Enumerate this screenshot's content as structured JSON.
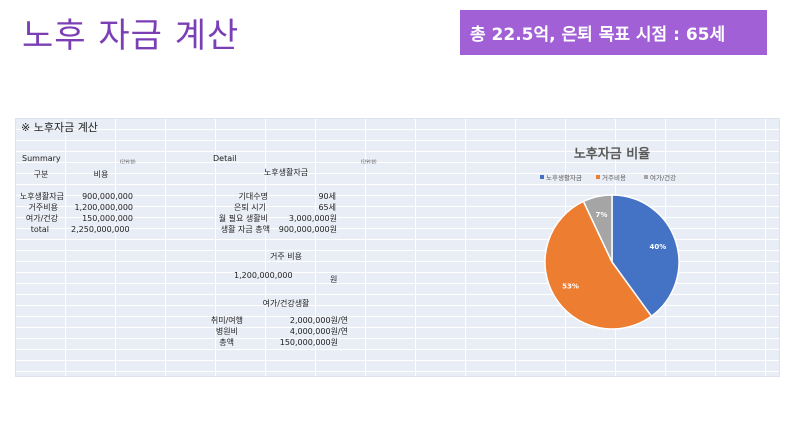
{
  "slide": {
    "title": "노후 자금 계산",
    "banner": "총 22.5억, 은퇴 목표 시점  : 65세"
  },
  "sheet": {
    "title": "※ 노후자금 계산",
    "summary": {
      "header": "Summary",
      "unit": "(단위:원)",
      "col1": "구분",
      "col2": "비용",
      "rows": [
        {
          "label": "노후생활자금",
          "value": "900,000,000"
        },
        {
          "label": "거주비용",
          "value": "1,200,000,000"
        },
        {
          "label": "여가/건강",
          "value": "150,000,000"
        },
        {
          "label": "total",
          "value": "2,250,000,000"
        }
      ]
    },
    "detail": {
      "header": "Detail",
      "unit": "(단위:원)",
      "living_title": "노후생활자금",
      "living": [
        {
          "label": "기대수명",
          "value": "90세"
        },
        {
          "label": "은퇴 시기",
          "value": "65세"
        },
        {
          "label": "월 필요 생활비",
          "value": "3,000,000원"
        },
        {
          "label": "생활 자금 총액",
          "value": "900,000,000원"
        }
      ],
      "housing_title": "거주 비용",
      "housing_value": "1,200,000,000",
      "housing_unit": "원",
      "leisure_title": "여가/건강생활",
      "leisure": [
        {
          "label": "취미/여행",
          "value": "2,000,000원/연"
        },
        {
          "label": "병원비",
          "value": "4,000,000원/연"
        },
        {
          "label": "총액",
          "value": "150,000,000원"
        }
      ]
    }
  },
  "chart_data": {
    "type": "pie",
    "title": "노후자금 비율",
    "categories": [
      "노후생활자금",
      "거주비용",
      "여가/건강"
    ],
    "values": [
      40,
      53,
      7
    ],
    "labels": [
      "40%",
      "53%",
      "7%"
    ],
    "colors": [
      "#4472c4",
      "#ed7d31",
      "#a5a5a5"
    ],
    "legend": "top"
  }
}
